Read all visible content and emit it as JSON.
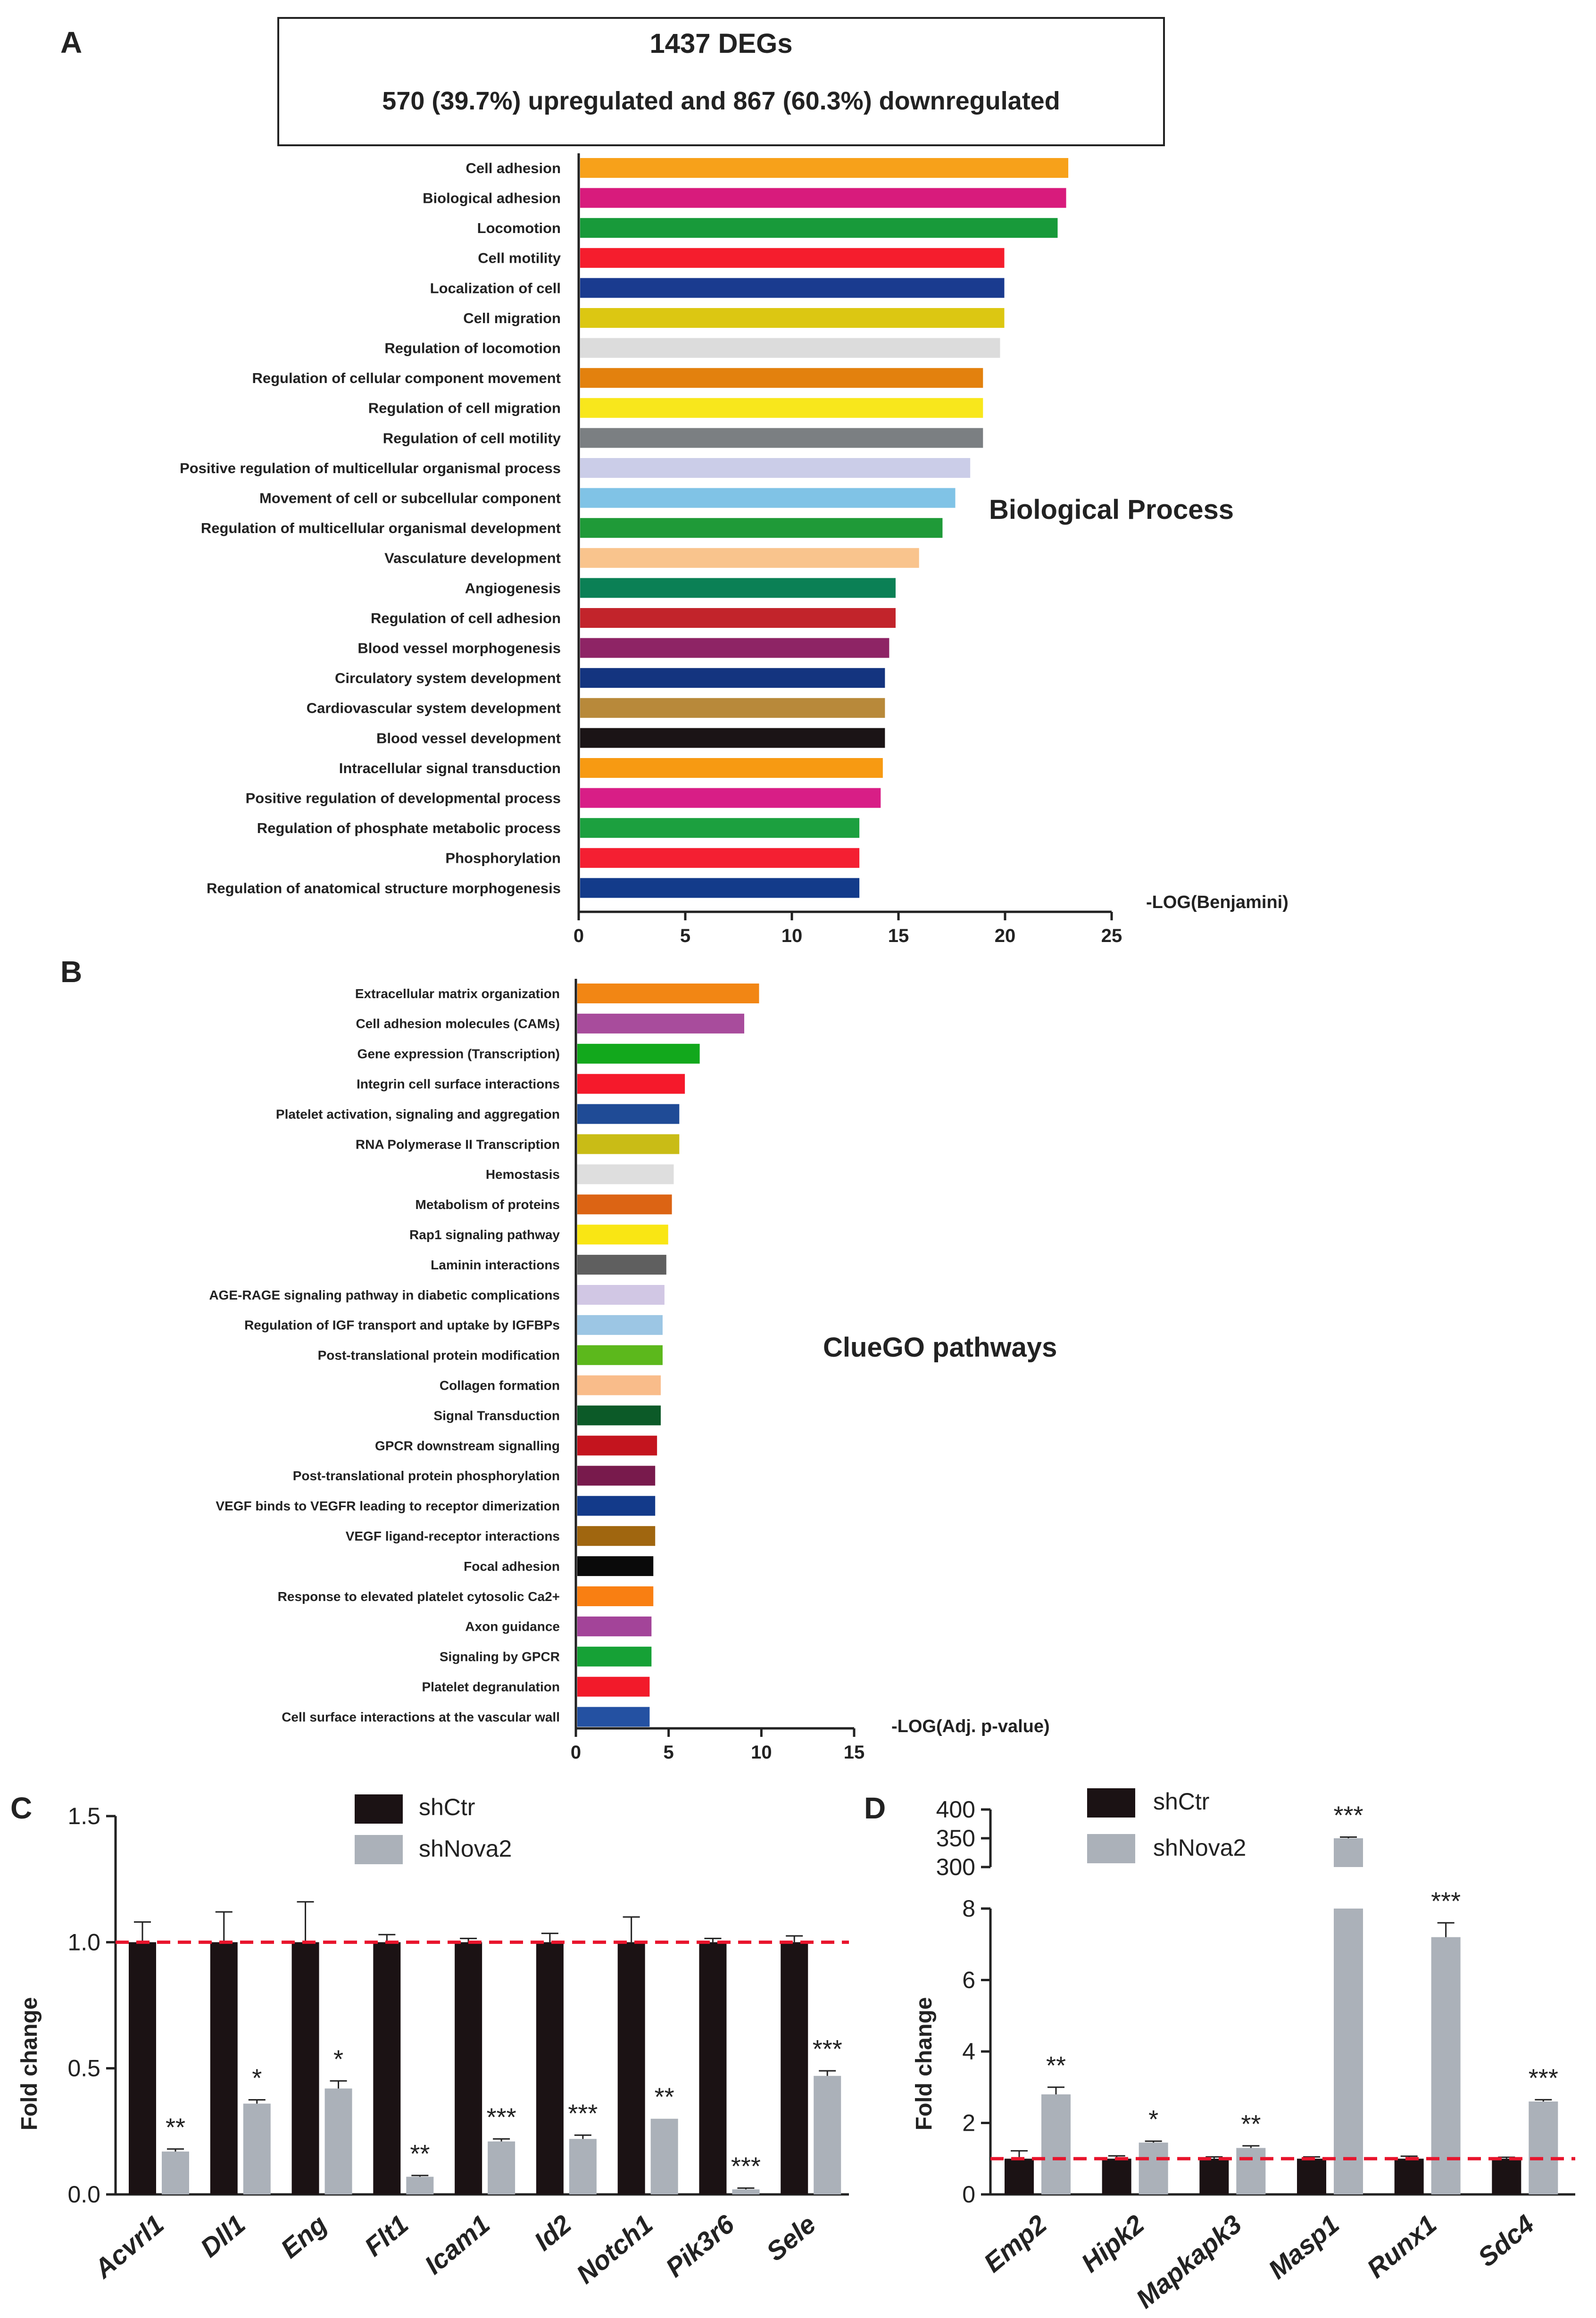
{
  "panelA": {
    "letter": "A",
    "summary_title": "1437 DEGs",
    "summary_text": "570 (39.7%) upregulated and 867 (60.3%) downregulated",
    "annotation": "Biological Process",
    "annotation_color": "#e8142c",
    "chart_data": {
      "type": "bar",
      "orientation": "horizontal",
      "xlabel": "-LOG(Benjamini)",
      "xlim": [
        0,
        25
      ],
      "xticks": [
        0,
        5,
        10,
        15,
        20,
        25
      ],
      "highlight_color": "#1e9e3a",
      "categories": [
        "Cell adhesion",
        "Biological adhesion",
        "Locomotion",
        "Cell motility",
        "Localization of cell",
        "Cell migration",
        "Regulation of locomotion",
        "Regulation of cellular component movement",
        "Regulation of cell migration",
        "Regulation of cell motility",
        "Positive regulation of multicellular organismal process",
        "Movement of cell or subcellular component",
        "Regulation of multicellular organismal development",
        "Vasculature development",
        "Angiogenesis",
        "Regulation of cell adhesion",
        "Blood vessel morphogenesis",
        "Circulatory system development",
        "Cardiovascular system development",
        "Blood vessel development",
        "Intracellular signal transduction",
        "Positive regulation of developmental process",
        "Regulation of phosphate metabolic process",
        "Phosphorylation",
        "Regulation of anatomical structure morphogenesis"
      ],
      "values": [
        22.9,
        22.8,
        22.4,
        19.9,
        19.9,
        19.9,
        19.7,
        18.9,
        18.9,
        18.9,
        18.3,
        17.6,
        17.0,
        15.9,
        14.8,
        14.8,
        14.5,
        14.3,
        14.3,
        14.3,
        14.2,
        14.1,
        13.1,
        13.1,
        13.1
      ],
      "highlighted": [
        false,
        false,
        false,
        false,
        false,
        false,
        false,
        false,
        false,
        false,
        false,
        false,
        false,
        true,
        true,
        false,
        true,
        false,
        false,
        true,
        false,
        false,
        false,
        false,
        false
      ],
      "colors": [
        "#f7a11a",
        "#d81b7c",
        "#189a3a",
        "#f51d2d",
        "#1a3b8f",
        "#dcc712",
        "#dcdcdc",
        "#e3810e",
        "#f8e71c",
        "#7b7f82",
        "#cbcde8",
        "#80c3e6",
        "#1f9a38",
        "#f9c48d",
        "#0b8055",
        "#c2242b",
        "#8e2465",
        "#14347f",
        "#b8893a",
        "#1b1416",
        "#f79a12",
        "#d81e86",
        "#1ca03f",
        "#f41f32",
        "#133b8a"
      ]
    }
  },
  "panelB": {
    "letter": "B",
    "annotation": "ClueGO pathways",
    "annotation_color": "#e8142c",
    "chart_data": {
      "type": "bar",
      "orientation": "horizontal",
      "xlabel": "-LOG(Adj. p-value)",
      "xlim": [
        0,
        15
      ],
      "xticks": [
        0,
        5,
        10,
        15
      ],
      "highlight_color": "#1e9e3a",
      "categories": [
        "Extracellular matrix organization",
        "Cell adhesion molecules (CAMs)",
        "Gene expression (Transcription)",
        "Integrin cell surface interactions",
        "Platelet activation, signaling and aggregation",
        "RNA Polymerase II Transcription",
        "Hemostasis",
        "Metabolism of proteins",
        "Rap1 signaling pathway",
        "Laminin interactions",
        "AGE-RAGE signaling pathway in diabetic complications",
        "Regulation of IGF transport and uptake by IGFBPs",
        "Post-translational protein modification",
        "Collagen formation",
        "Signal Transduction",
        "GPCR downstream signalling",
        "Post-translational protein phosphorylation",
        "VEGF binds to VEGFR leading to receptor dimerization",
        "VEGF ligand-receptor interactions",
        "Focal adhesion",
        "Response to elevated platelet cytosolic Ca2+",
        "Axon guidance",
        "Signaling by GPCR",
        "Platelet degranulation",
        "Cell surface interactions at the vascular wall"
      ],
      "values": [
        9.8,
        9.0,
        6.6,
        5.8,
        5.5,
        5.5,
        5.2,
        5.1,
        4.9,
        4.8,
        4.7,
        4.6,
        4.6,
        4.5,
        4.5,
        4.3,
        4.2,
        4.2,
        4.2,
        4.1,
        4.1,
        4.0,
        4.0,
        3.9,
        3.9
      ],
      "highlighted": [
        false,
        false,
        false,
        false,
        false,
        false,
        false,
        false,
        false,
        false,
        false,
        false,
        false,
        false,
        false,
        false,
        false,
        true,
        true,
        false,
        false,
        false,
        false,
        false,
        true
      ],
      "colors": [
        "#f28614",
        "#a84c9c",
        "#12a81c",
        "#f5192b",
        "#1f4b96",
        "#c9bc16",
        "#dedede",
        "#dc6414",
        "#f9e614",
        "#5f5f5f",
        "#d1c7e4",
        "#9cc6e4",
        "#5cb81c",
        "#f9bc8a",
        "#0c5a28",
        "#c4141e",
        "#781a4c",
        "#133a8a",
        "#a0660f",
        "#0a0a0a",
        "#f97f12",
        "#a34499",
        "#16a136",
        "#f21a2a",
        "#2451a2"
      ]
    }
  },
  "panelC": {
    "letter": "C",
    "chart_data": {
      "type": "bar",
      "ylabel": "Fold change",
      "ylim": [
        0,
        1.5
      ],
      "yticks": [
        0.0,
        0.5,
        1.0,
        1.5
      ],
      "ytick_labels": [
        "0.0",
        "0.5",
        "1.0",
        "1.5"
      ],
      "reference_line": 1.0,
      "legend": [
        "shCtr",
        "shNova2"
      ],
      "categories": [
        "Acvrl1",
        "Dll1",
        "Eng",
        "Flt1",
        "Icam1",
        "Id2",
        "Notch1",
        "Pik3r6",
        "Sele"
      ],
      "series": [
        {
          "name": "shCtr",
          "color": "#1b1214",
          "values": [
            1.0,
            1.0,
            1.0,
            1.0,
            1.0,
            1.0,
            1.0,
            1.0,
            1.0
          ],
          "errors": [
            0.08,
            0.12,
            0.16,
            0.03,
            0.015,
            0.035,
            0.1,
            0.015,
            0.025
          ]
        },
        {
          "name": "shNova2",
          "color": "#abb1b9",
          "values": [
            0.17,
            0.36,
            0.42,
            0.07,
            0.21,
            0.22,
            0.3,
            0.02,
            0.47
          ],
          "errors": [
            0.01,
            0.015,
            0.03,
            0.005,
            0.01,
            0.015,
            0.0,
            0.005,
            0.02
          ]
        }
      ],
      "significance": [
        "**",
        "*",
        "*",
        "**",
        "***",
        "***",
        "**",
        "***",
        "***"
      ]
    }
  },
  "panelD": {
    "letter": "D",
    "chart_data": {
      "type": "bar",
      "ylabel": "Fold change",
      "axis_break": true,
      "ylim_lower": [
        0,
        8
      ],
      "yticks_lower": [
        0,
        2,
        4,
        6,
        8
      ],
      "ylim_upper": [
        300,
        400
      ],
      "yticks_upper": [
        300,
        350,
        400
      ],
      "reference_line": 1.0,
      "legend": [
        "shCtr",
        "shNova2"
      ],
      "categories": [
        "Emp2",
        "Hipk2",
        "Mapkapk3",
        "Masp1",
        "Runx1",
        "Sdc4"
      ],
      "series": [
        {
          "name": "shCtr",
          "color": "#1b1214",
          "values": [
            1.0,
            1.0,
            1.0,
            1.0,
            1.0,
            1.0
          ],
          "errors": [
            0.22,
            0.08,
            0.05,
            0.05,
            0.07,
            0.04
          ]
        },
        {
          "name": "shNova2",
          "color": "#abb1b9",
          "values": [
            2.8,
            1.45,
            1.3,
            350,
            7.2,
            2.6
          ],
          "errors": [
            0.2,
            0.04,
            0.06,
            2.0,
            0.4,
            0.05
          ]
        }
      ],
      "significance": [
        "**",
        "*",
        "**",
        "***",
        "***",
        "***"
      ]
    }
  }
}
